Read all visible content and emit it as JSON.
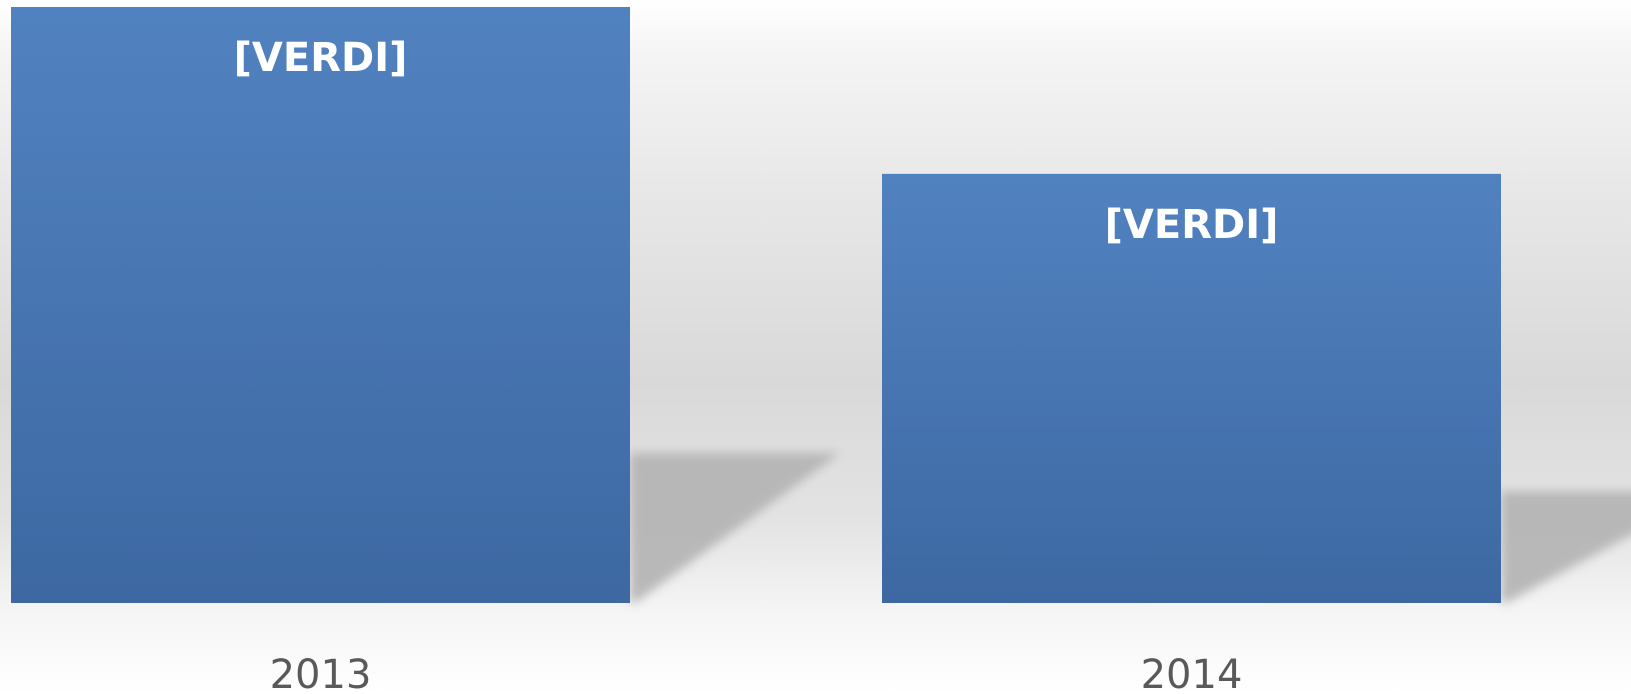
{
  "chart_data": {
    "type": "bar",
    "categories": [
      "2013",
      "2014"
    ],
    "values": [
      100,
      72
    ],
    "data_labels": [
      "[VERDI]",
      "[VERDI]"
    ],
    "ylim": [
      0,
      100
    ],
    "grid": false,
    "colors": {
      "bar_top": "#5182C0",
      "bar_bottom": "#3D68A2",
      "shadow": "#b3b3b3",
      "tick_text": "#595959",
      "label_text": "#ffffff"
    }
  }
}
